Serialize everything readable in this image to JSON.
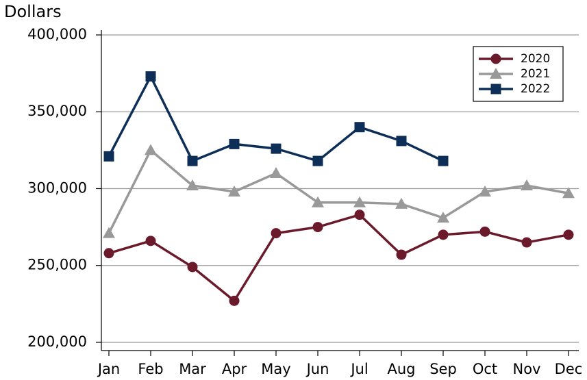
{
  "chart_data": {
    "type": "line",
    "y_axis_label": "Dollars",
    "categories": [
      "Jan",
      "Feb",
      "Mar",
      "Apr",
      "May",
      "Jun",
      "Jul",
      "Aug",
      "Sep",
      "Oct",
      "Nov",
      "Dec"
    ],
    "series": [
      {
        "name": "2020",
        "color": "#6b1a2b",
        "marker": "circle",
        "values": [
          258000,
          266000,
          249000,
          227000,
          271000,
          275000,
          283000,
          257000,
          270000,
          272000,
          265000,
          270000
        ]
      },
      {
        "name": "2021",
        "color": "#999999",
        "marker": "triangle",
        "values": [
          271000,
          325000,
          302000,
          298000,
          310000,
          291000,
          291000,
          290000,
          281000,
          298000,
          302000,
          297000
        ]
      },
      {
        "name": "2022",
        "color": "#0d2f57",
        "marker": "square",
        "values": [
          321000,
          373000,
          318000,
          329000,
          326000,
          318000,
          340000,
          331000,
          318000,
          null,
          null,
          null
        ]
      }
    ],
    "ylim": [
      195000,
      400000
    ],
    "yticks": [
      {
        "value": 200000,
        "label": "200,000"
      },
      {
        "value": 250000,
        "label": "250,000"
      },
      {
        "value": 300000,
        "label": "300,000"
      },
      {
        "value": 350000,
        "label": "350,000"
      },
      {
        "value": 400000,
        "label": "400,000"
      }
    ],
    "grid": true,
    "legend_position": "upper right"
  }
}
